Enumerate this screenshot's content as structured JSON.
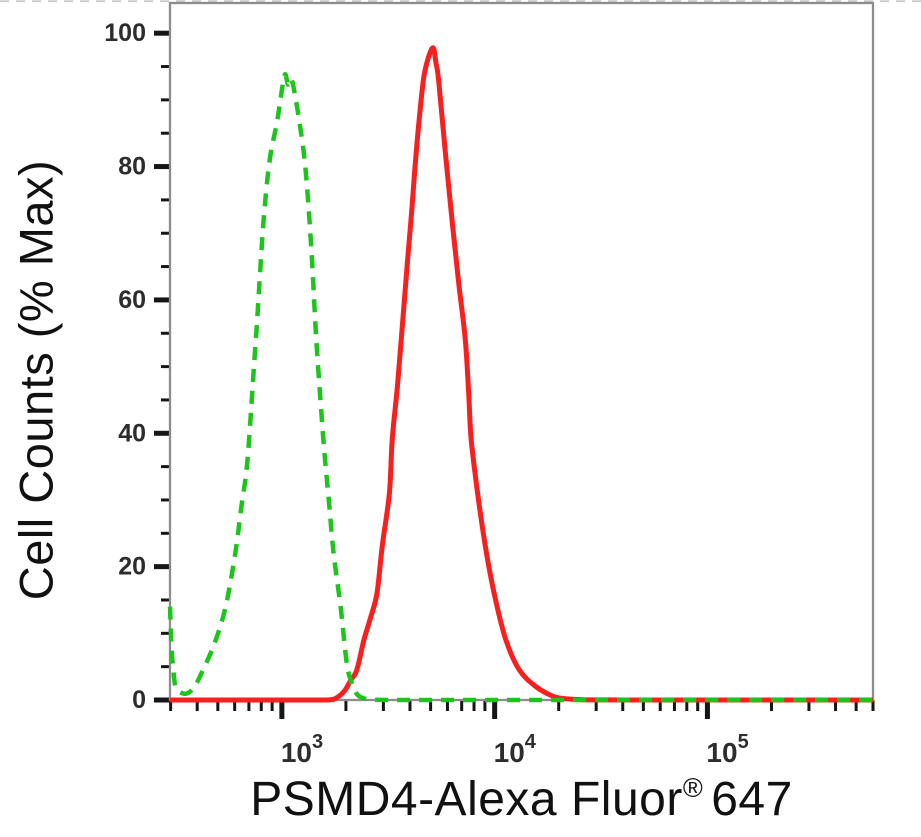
{
  "figure": {
    "xlabel": {
      "main": "PSMD4-Alexa Fluor",
      "sup": "®",
      "suffix": "647",
      "full": "PSMD4-Alexa Fluor® 647"
    },
    "ylabel": "Cell Counts (% Max)"
  },
  "decorations": {
    "top_dashed_border_color": "#c9c9c9"
  },
  "colors": {
    "background": "#ffffff",
    "frame": "#8d8d8d",
    "tick": "#161616",
    "tick_label_text": "#2d2d2d",
    "axis_title_text": "#111111"
  },
  "chart_data": {
    "type": "line",
    "subtype": "flow-cytometry-overlay-histogram",
    "title": "",
    "xlabel": "PSMD4-Alexa Fluor® 647",
    "ylabel": "Cell Counts (% Max)",
    "x_scale": "log10",
    "xlim": [
      298,
      600000
    ],
    "ylim": [
      0,
      100
    ],
    "grid": false,
    "legend_position": "none",
    "x_major_ticks": [
      {
        "value": 1000,
        "label_base": "10",
        "label_exp": "3"
      },
      {
        "value": 10000,
        "label_base": "10",
        "label_exp": "4"
      },
      {
        "value": 100000,
        "label_base": "10",
        "label_exp": "5"
      }
    ],
    "x_minor_ticks_per_decade": [
      2,
      3,
      4,
      5,
      6,
      7,
      8,
      9
    ],
    "y_major_ticks": [
      0,
      20,
      40,
      60,
      80,
      100
    ],
    "y_minor_step": 5,
    "series": [
      {
        "name": "red-solid-curve",
        "line_style": "solid",
        "color": "#f81f1f",
        "stroke_width": 5,
        "peak_x": 5150,
        "peak_y_pct": 97.8,
        "points": [
          [
            298,
            0
          ],
          [
            500,
            0
          ],
          [
            900,
            0
          ],
          [
            1300,
            0
          ],
          [
            1600,
            0
          ],
          [
            1750,
            0.1
          ],
          [
            1950,
            1.2
          ],
          [
            2110,
            3
          ],
          [
            2250,
            4.5
          ],
          [
            2430,
            9
          ],
          [
            2620,
            12.5
          ],
          [
            2800,
            16
          ],
          [
            2960,
            23
          ],
          [
            3200,
            31
          ],
          [
            3300,
            39
          ],
          [
            3490,
            47
          ],
          [
            3700,
            57
          ],
          [
            3900,
            66
          ],
          [
            4080,
            73.5
          ],
          [
            4250,
            81
          ],
          [
            4450,
            88
          ],
          [
            4650,
            93.5
          ],
          [
            4900,
            96.5
          ],
          [
            5150,
            97.8
          ],
          [
            5300,
            95.5
          ],
          [
            5450,
            93
          ],
          [
            5850,
            82.5
          ],
          [
            6350,
            71
          ],
          [
            6810,
            62
          ],
          [
            7280,
            54
          ],
          [
            7550,
            46
          ],
          [
            7760,
            39
          ],
          [
            8400,
            30
          ],
          [
            9160,
            22
          ],
          [
            10100,
            15
          ],
          [
            11300,
            9
          ],
          [
            13000,
            4.6
          ],
          [
            15500,
            2.1
          ],
          [
            18700,
            0.6
          ],
          [
            21500,
            0.2
          ],
          [
            26000,
            0.05
          ],
          [
            40000,
            0
          ],
          [
            80000,
            0
          ],
          [
            160000,
            0
          ],
          [
            320000,
            0
          ],
          [
            600000,
            0
          ]
        ]
      },
      {
        "name": "green-dashed-curve",
        "line_style": "dashed",
        "color": "#1cc41c",
        "stroke_width": 4.5,
        "dash_pattern": [
          13,
          9
        ],
        "peak_x": 1033,
        "peak_y_pct": 93.8,
        "points": [
          [
            298,
            14
          ],
          [
            303,
            8
          ],
          [
            310,
            4
          ],
          [
            318,
            1.8
          ],
          [
            341,
            1.0
          ],
          [
            365,
            1.1
          ],
          [
            394,
            2.3
          ],
          [
            430,
            4.8
          ],
          [
            469,
            7.5
          ],
          [
            513,
            11
          ],
          [
            553,
            15
          ],
          [
            604,
            22
          ],
          [
            645,
            29
          ],
          [
            689,
            36
          ],
          [
            743,
            51
          ],
          [
            769,
            58
          ],
          [
            821,
            72
          ],
          [
            877,
            81
          ],
          [
            947,
            86.5
          ],
          [
            989,
            90.5
          ],
          [
            1033,
            93.8
          ],
          [
            1069,
            92.3
          ],
          [
            1104,
            93.2
          ],
          [
            1141,
            91.5
          ],
          [
            1205,
            87
          ],
          [
            1288,
            80
          ],
          [
            1374,
            68
          ],
          [
            1452,
            54
          ],
          [
            1567,
            39
          ],
          [
            1656,
            30.5
          ],
          [
            1750,
            22
          ],
          [
            1888,
            14
          ],
          [
            2018,
            5.5
          ],
          [
            2132,
            2.5
          ],
          [
            2249,
            0.9
          ],
          [
            2404,
            0.3
          ],
          [
            2700,
            0.05
          ],
          [
            3500,
            0
          ],
          [
            6000,
            0
          ],
          [
            12000,
            0
          ],
          [
            30000,
            0
          ],
          [
            80000,
            0
          ],
          [
            200000,
            0
          ],
          [
            400000,
            0
          ],
          [
            600000,
            0
          ]
        ]
      }
    ]
  }
}
